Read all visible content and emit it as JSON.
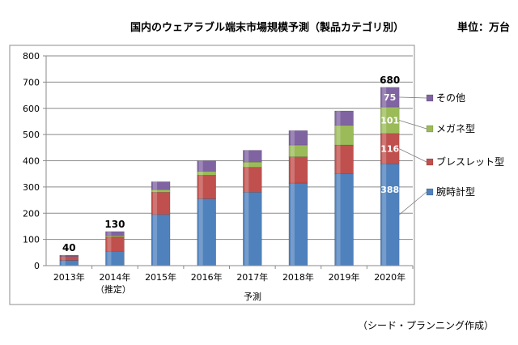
{
  "chart_data": {
    "type": "bar",
    "stacked": true,
    "title": "国内のウェアラブル端末市場規模予測（製品カテゴリ別）",
    "unit_label": "単位：万台",
    "source": "（シード・プランニング作成）",
    "xlabel": "予測",
    "ylabel": "",
    "ylim": [
      0,
      800
    ],
    "yticks": [
      0,
      100,
      200,
      300,
      400,
      500,
      600,
      700,
      800
    ],
    "grid": true,
    "legend_position": "right",
    "categories": [
      "2013年",
      "2014年",
      "2015年",
      "2016年",
      "2017年",
      "2018年",
      "2019年",
      "2020年"
    ],
    "category_sublabels": [
      "",
      "（推定）",
      "",
      "",
      "",
      "",
      "",
      ""
    ],
    "series": [
      {
        "name": "腕時計型",
        "color": "#4F81BD",
        "values": [
          20,
          55,
          195,
          255,
          280,
          315,
          350,
          388
        ]
      },
      {
        "name": "ブレスレット型",
        "color": "#C0504D",
        "values": [
          15,
          55,
          85,
          90,
          95,
          100,
          110,
          116
        ]
      },
      {
        "name": "メガネ型",
        "color": "#9BBB59",
        "values": [
          0,
          5,
          10,
          15,
          20,
          45,
          75,
          101
        ]
      },
      {
        "name": "その他",
        "color": "#8064A2",
        "values": [
          5,
          15,
          30,
          40,
          45,
          55,
          55,
          75
        ]
      }
    ],
    "totals": [
      {
        "index": 0,
        "text": "40"
      },
      {
        "index": 1,
        "text": "130"
      },
      {
        "index": 7,
        "text": "680"
      }
    ],
    "data_labels": [
      {
        "category_index": 7,
        "series_index": 0,
        "text": "388"
      },
      {
        "category_index": 7,
        "series_index": 1,
        "text": "116"
      },
      {
        "category_index": 7,
        "series_index": 2,
        "text": "101"
      },
      {
        "category_index": 7,
        "series_index": 3,
        "text": "75"
      }
    ]
  }
}
